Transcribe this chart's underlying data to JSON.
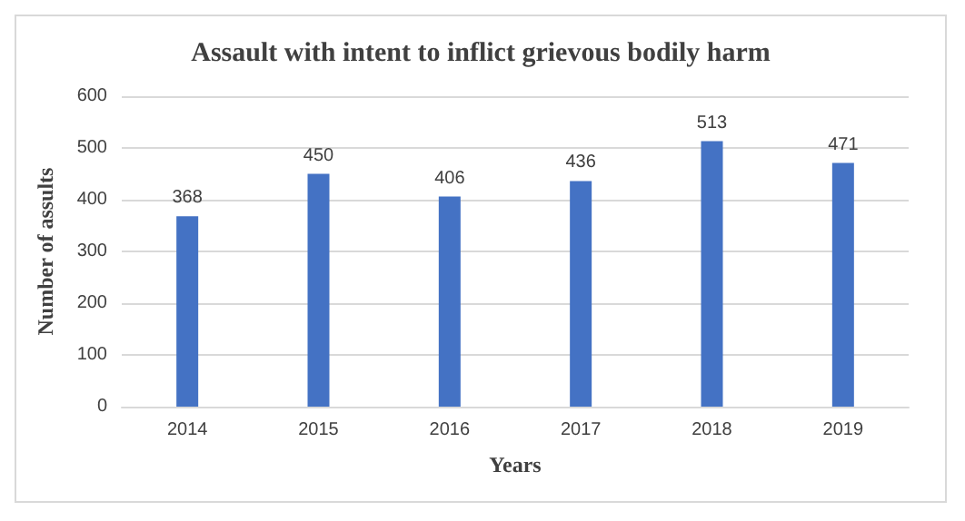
{
  "chart_data": {
    "type": "bar",
    "title": "Assault with intent to inflict grievous bodily harm",
    "xlabel": "Years",
    "ylabel": "Number of assults",
    "categories": [
      "2014",
      "2015",
      "2016",
      "2017",
      "2018",
      "2019"
    ],
    "values": [
      368,
      450,
      406,
      436,
      513,
      471
    ],
    "color": "#4472c4",
    "ylim": [
      0,
      600
    ],
    "yticks": [
      0,
      100,
      200,
      300,
      400,
      500,
      600
    ],
    "grid": "y",
    "data_labels": true
  }
}
